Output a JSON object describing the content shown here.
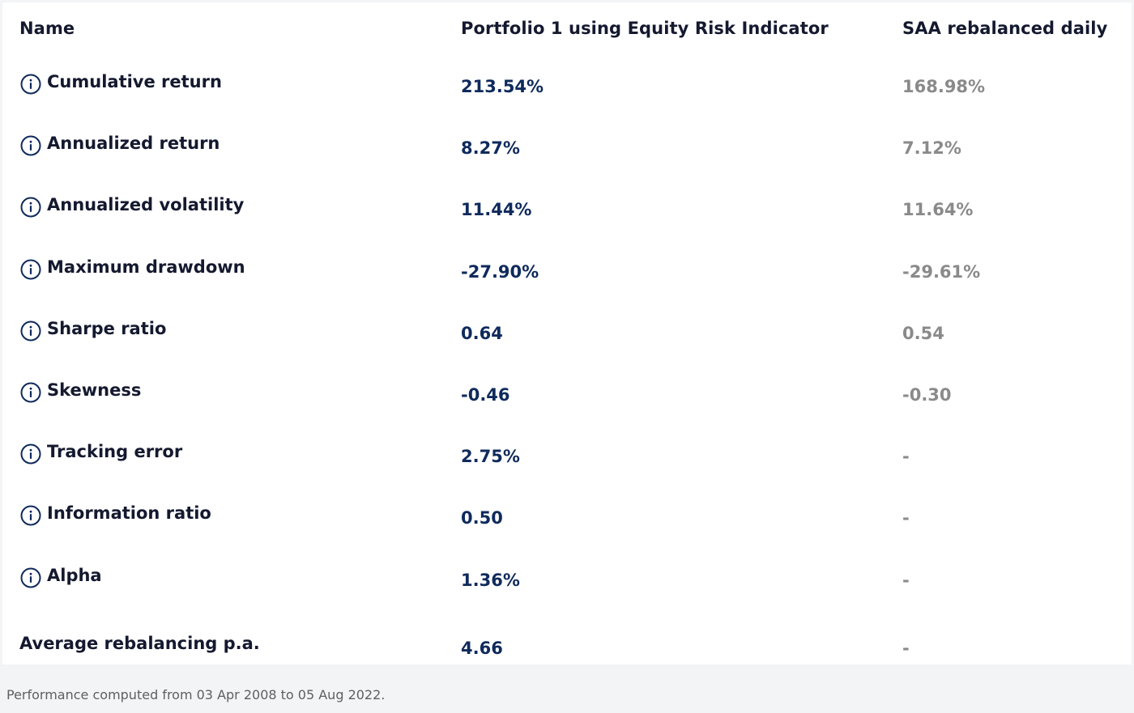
{
  "table": {
    "headers": {
      "name": "Name",
      "portfolio": "Portfolio 1 using Equity Risk Indicator",
      "saa": "SAA rebalanced daily"
    },
    "rows": [
      {
        "metric": "Cumulative return",
        "has_info_icon": true,
        "portfolio": "213.54%",
        "saa": "168.98%"
      },
      {
        "metric": "Annualized return",
        "has_info_icon": true,
        "portfolio": "8.27%",
        "saa": "7.12%"
      },
      {
        "metric": "Annualized volatility",
        "has_info_icon": true,
        "portfolio": "11.44%",
        "saa": "11.64%"
      },
      {
        "metric": "Maximum drawdown",
        "has_info_icon": true,
        "portfolio": "-27.90%",
        "saa": "-29.61%"
      },
      {
        "metric": "Sharpe ratio",
        "has_info_icon": true,
        "portfolio": "0.64",
        "saa": "0.54"
      },
      {
        "metric": "Skewness",
        "has_info_icon": true,
        "portfolio": "-0.46",
        "saa": "-0.30"
      },
      {
        "metric": "Tracking error",
        "has_info_icon": true,
        "portfolio": "2.75%",
        "saa": "-"
      },
      {
        "metric": "Information ratio",
        "has_info_icon": true,
        "portfolio": "0.50",
        "saa": "-"
      },
      {
        "metric": "Alpha",
        "has_info_icon": true,
        "portfolio": "1.36%",
        "saa": "-"
      },
      {
        "metric": "Average rebalancing p.a.",
        "has_info_icon": false,
        "portfolio": "4.66",
        "saa": "-"
      }
    ],
    "icon": "info-circle-icon"
  },
  "footer": {
    "note": "Performance computed from 03 Apr 2008 to 05 Aug 2022."
  },
  "colors": {
    "header_text": "#14192f",
    "portfolio_value": "#0f2a5c",
    "saa_value": "#8a8a8a",
    "icon": "#0f2a5c"
  }
}
